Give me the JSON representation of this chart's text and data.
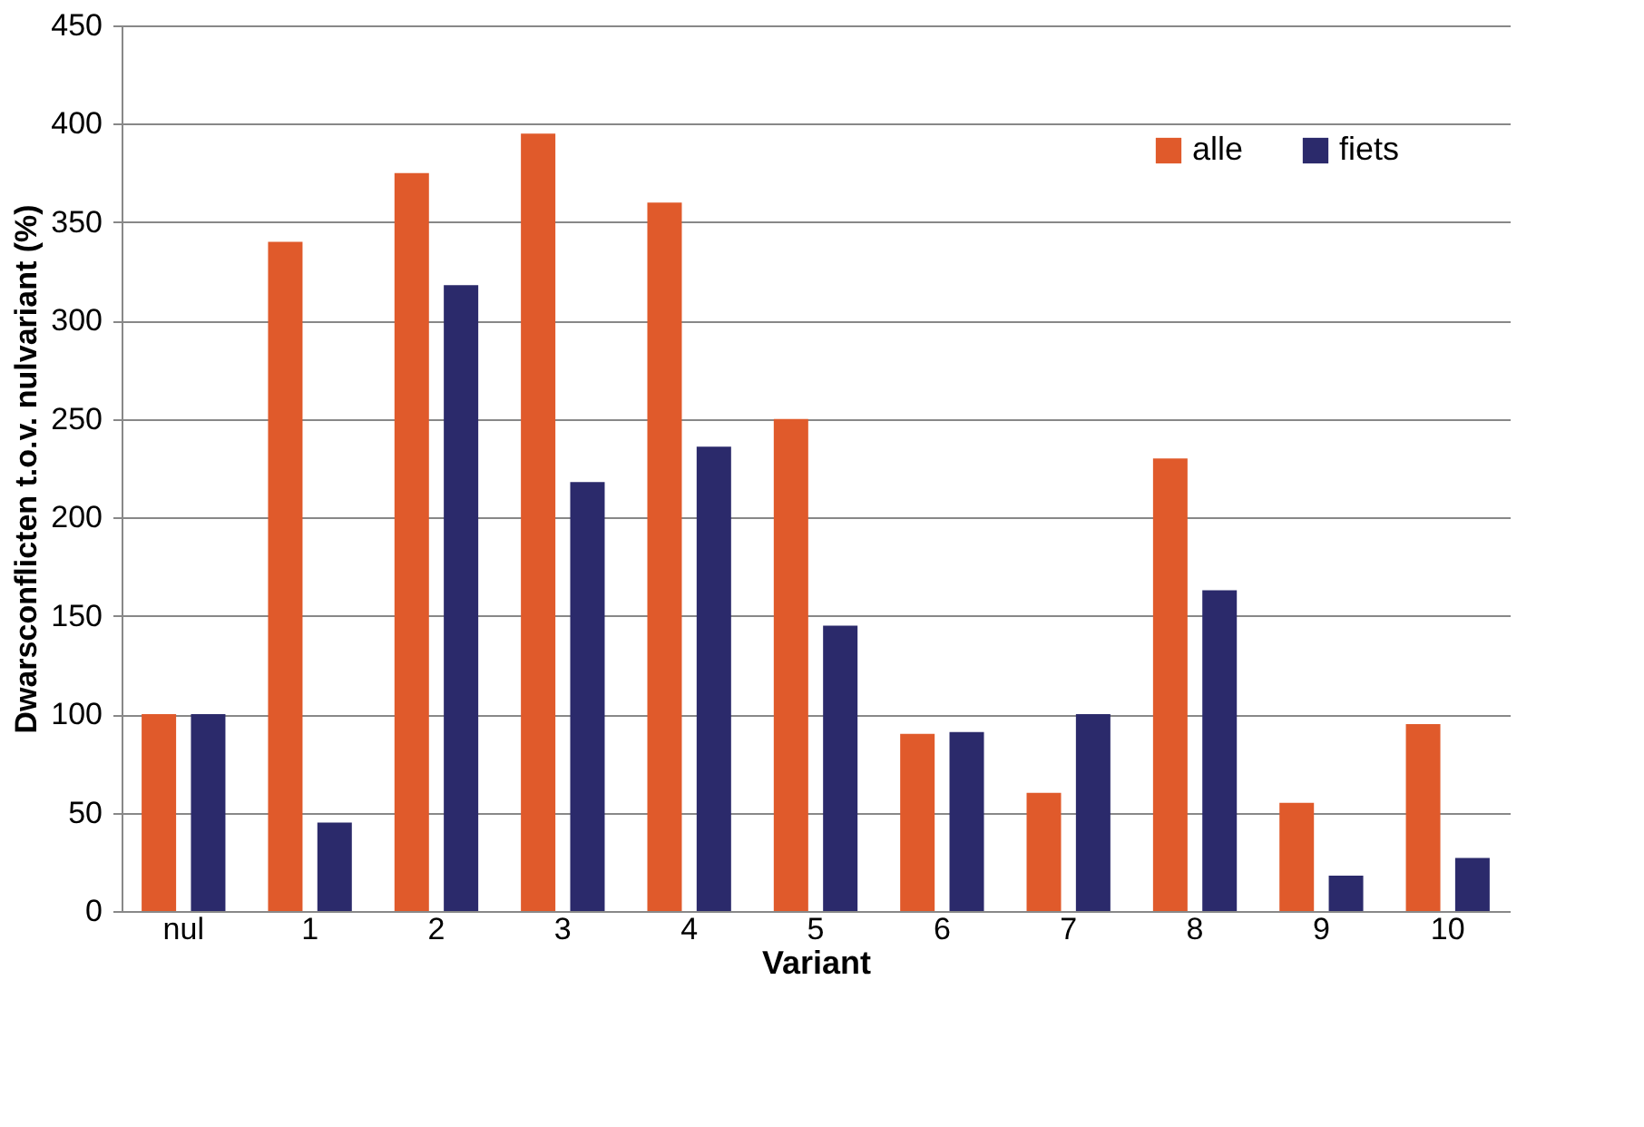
{
  "chart_data": {
    "type": "bar",
    "xlabel": "Variant",
    "ylabel": "Dwarsconflicten t.o.v. nulvariant (%)",
    "categories": [
      "nul",
      "1",
      "2",
      "3",
      "4",
      "5",
      "6",
      "7",
      "8",
      "9",
      "10"
    ],
    "series": [
      {
        "name": "alle",
        "color": "#e05a2b",
        "values": [
          100,
          340,
          375,
          395,
          360,
          250,
          90,
          60,
          230,
          55,
          95
        ]
      },
      {
        "name": "fiets",
        "color": "#2b2a6b",
        "values": [
          100,
          45,
          318,
          218,
          236,
          145,
          91,
          100,
          163,
          18,
          27
        ]
      }
    ],
    "ylim": [
      0,
      450
    ],
    "yticks": [
      0,
      50,
      100,
      150,
      200,
      250,
      300,
      350,
      400,
      450
    ],
    "grid": "y",
    "legend": "top right"
  }
}
